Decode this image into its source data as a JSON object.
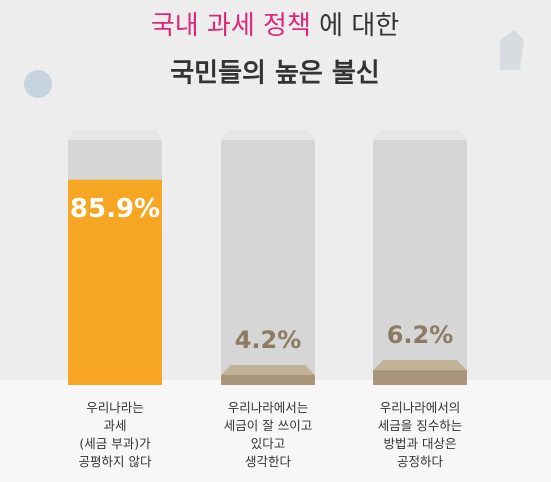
{
  "chart_data": {
    "type": "bar",
    "title": {
      "highlight": "국내 과세 정책",
      "rest": "에 대한"
    },
    "subtitle": "국민들의 높은 불신",
    "categories": [
      "우리나라는\n과세\n(세금 부과)가\n공평하지 않다",
      "우리나라에서는\n세금이 잘 쓰이고\n있다고\n생각한다",
      "우리나라에서의\n세금을 징수하는\n방법과 대상은\n공정하다"
    ],
    "values": [
      85.9,
      4.2,
      6.2
    ],
    "value_labels": [
      "85.9%",
      "4.2%",
      "6.2%"
    ],
    "colors": [
      "#f6a623",
      "#a8957a",
      "#a8957a"
    ],
    "ylim": [
      0,
      100
    ]
  }
}
